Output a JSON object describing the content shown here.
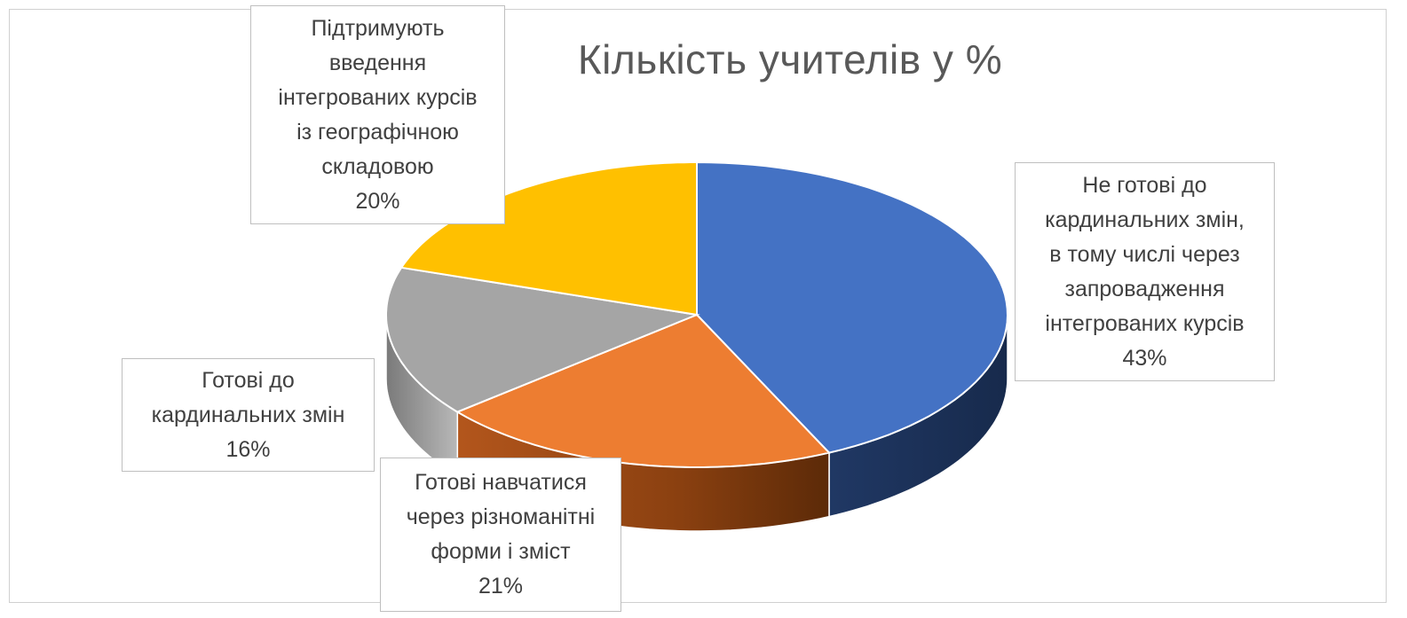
{
  "chart_data": {
    "type": "pie",
    "title": "Кількість учителів у %",
    "slices": [
      {
        "label": "Не готові до кардинальних змін, в тому числі через запровадження інтегрованих курсів",
        "value": 43,
        "value_label": "43%",
        "color": "#4472c4",
        "side_color": "#1f3864",
        "label_lines": [
          "Не готові до",
          "кардинальних змін,",
          "в тому числі через",
          "запровадження",
          "інтегрованих курсів"
        ]
      },
      {
        "label": "Готові навчатися через різноманітні форми і зміст",
        "value": 21,
        "value_label": "21%",
        "color": "#ed7d31",
        "side_color": "#843c0c",
        "label_lines": [
          "Готові навчатися",
          "через різноманітні",
          "форми і зміст"
        ]
      },
      {
        "label": "Готові до кардинальних змін",
        "value": 16,
        "value_label": "16%",
        "color": "#a5a5a5",
        "side_color": "#6b6b6b",
        "label_lines": [
          "Готові до",
          "кардинальних змін"
        ]
      },
      {
        "label": "Підтримують введення інтегрованих курсів із географічною складовою",
        "value": 20,
        "value_label": "20%",
        "color": "#ffc000",
        "side_color": "#b08300",
        "label_lines": [
          "Підтримують",
          "введення",
          "інтегрованих курсів",
          "із географічною",
          "складовою"
        ]
      }
    ],
    "legend": "none",
    "style": "3d"
  }
}
